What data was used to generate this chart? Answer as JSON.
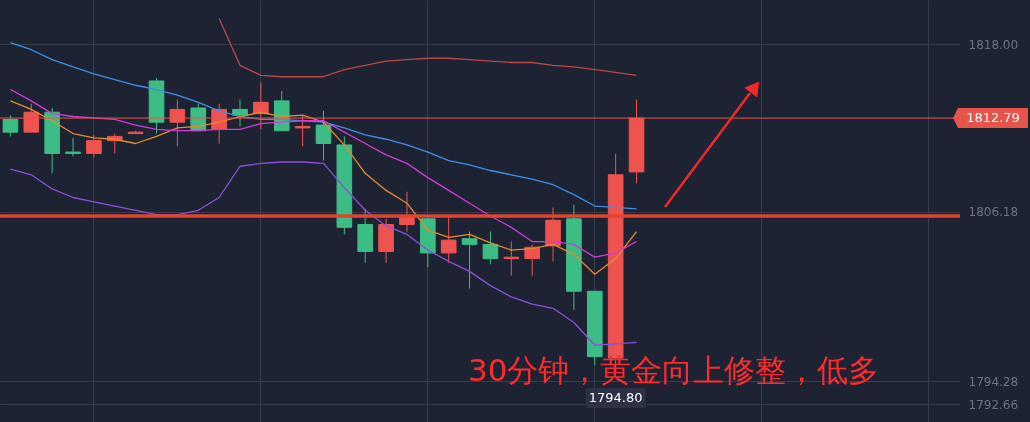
{
  "chart_data": {
    "type": "candlestick",
    "categories": [
      null,
      null,
      null,
      null,
      null,
      null,
      null,
      null,
      null,
      null,
      null,
      null,
      null,
      null,
      null,
      null,
      null,
      null,
      null,
      null,
      null,
      null,
      null,
      null,
      null,
      null,
      null,
      null,
      null,
      null,
      null,
      null,
      null,
      null,
      null,
      null,
      null,
      null,
      null,
      null,
      null,
      null,
      null,
      null,
      null,
      null
    ],
    "ohlc": [
      [
        1812.7,
        1813.0,
        1811.5,
        1811.8
      ],
      [
        1811.8,
        1813.8,
        1811.8,
        1813.2
      ],
      [
        1813.2,
        1813.5,
        1808.9,
        1810.3
      ],
      [
        1810.4,
        1811.4,
        1810.1,
        1810.3
      ],
      [
        1810.3,
        1811.6,
        1810.0,
        1811.2
      ],
      [
        1811.2,
        1811.7,
        1810.3,
        1811.5
      ],
      [
        1811.7,
        1811.9,
        1811.7,
        1811.8
      ],
      [
        1815.4,
        1815.6,
        1811.7,
        1812.5
      ],
      [
        1812.5,
        1814.1,
        1810.8,
        1813.4
      ],
      [
        1813.5,
        1813.8,
        1811.9,
        1811.9
      ],
      [
        1812.0,
        1813.8,
        1811.0,
        1813.4
      ],
      [
        1813.4,
        1814.1,
        1812.2,
        1813.0
      ],
      [
        1813.1,
        1815.3,
        1812.0,
        1813.9
      ],
      [
        1814.0,
        1814.7,
        1811.9,
        1811.9
      ],
      [
        1812.1,
        1813.0,
        1810.8,
        1812.2
      ],
      [
        1812.3,
        1813.3,
        1809.8,
        1811.0
      ],
      [
        1810.9,
        1811.5,
        1804.6,
        1805.1
      ],
      [
        1805.3,
        1806.4,
        1802.6,
        1803.4
      ],
      [
        1803.4,
        1805.7,
        1802.6,
        1805.3
      ],
      [
        1805.3,
        1807.6,
        1804.8,
        1805.8
      ],
      [
        1805.7,
        1805.8,
        1802.3,
        1803.3
      ],
      [
        1803.3,
        1805.8,
        1802.6,
        1804.2
      ],
      [
        1804.3,
        1804.8,
        1800.8,
        1803.9
      ],
      [
        1803.9,
        1804.8,
        1802.5,
        1802.9
      ],
      [
        1802.9,
        1804.1,
        1801.7,
        1803.0
      ],
      [
        1802.9,
        1803.9,
        1801.7,
        1803.7
      ],
      [
        1803.8,
        1806.5,
        1802.7,
        1805.6
      ],
      [
        1805.7,
        1806.7,
        1799.3,
        1800.6
      ],
      [
        1800.6,
        1800.6,
        1795.4,
        1796.0
      ],
      [
        1795.9,
        1810.3,
        1794.8,
        1808.8
      ],
      [
        1809.0,
        1814.1,
        1808.2,
        1812.79
      ],
      null,
      null,
      null,
      null,
      null,
      null,
      null,
      null,
      null,
      null,
      null,
      null,
      null,
      null,
      null
    ],
    "colors": [
      "#3dbd86",
      "#ef5350",
      "#3dbd86",
      "#3dbd86",
      "#ef5350",
      "#ef5350",
      "#ef5350",
      "#3dbd86",
      "#ef5350",
      "#3dbd86",
      "#ef5350",
      "#3dbd86",
      "#ef5350",
      "#3dbd86",
      "#ef5350",
      "#3dbd86",
      "#3dbd86",
      "#3dbd86",
      "#ef5350",
      "#ef5350",
      "#3dbd86",
      "#ef5350",
      "#3dbd86",
      "#3dbd86",
      "#ef5350",
      "#ef5350",
      "#ef5350",
      "#3dbd86",
      "#3dbd86",
      "#ef5350",
      "#ef5350",
      null,
      null,
      null,
      null,
      null,
      null,
      null,
      null,
      null,
      null,
      null,
      null,
      null,
      null,
      null
    ],
    "series": [
      {
        "type": "line",
        "color": "#3f8ee8",
        "values": [
          1818.1,
          1817.6,
          1816.9,
          1816.4,
          1815.9,
          1815.5,
          1815.1,
          1814.8,
          1814.4,
          1813.9,
          1813.3,
          1812.9,
          1812.7,
          1812.7,
          1812.6,
          1812.5,
          1812.1,
          1811.6,
          1811.3,
          1810.9,
          1810.4,
          1809.8,
          1809.5,
          1809.1,
          1808.8,
          1808.5,
          1808.1,
          1807.4,
          1806.6,
          1806.5,
          1806.4,
          null,
          null,
          null,
          null,
          null,
          null,
          null,
          null,
          null,
          null,
          null,
          null,
          null,
          null,
          null
        ]
      },
      {
        "type": "line",
        "color": "#e58a2a",
        "values": [
          1814.0,
          1813.4,
          1812.6,
          1811.7,
          1811.4,
          1811.3,
          1811.0,
          1811.5,
          1812.1,
          1812.2,
          1812.5,
          1812.9,
          1813.2,
          1812.9,
          1813.0,
          1812.5,
          1810.9,
          1808.9,
          1807.7,
          1806.8,
          1804.9,
          1804.4,
          1804.6,
          1804.0,
          1803.5,
          1803.6,
          1803.9,
          1803.2,
          1801.8,
          1802.9,
          1804.8,
          null,
          null,
          null,
          null,
          null,
          null,
          null,
          null,
          null,
          null,
          null,
          null,
          null,
          null,
          null
        ]
      },
      {
        "type": "line",
        "color": "#d13bd6",
        "values": [
          1814.8,
          1814.0,
          1813.1,
          1812.9,
          1812.8,
          1812.7,
          1812.3,
          1812.0,
          1811.9,
          1811.9,
          1812.0,
          1812.0,
          1812.4,
          1812.5,
          1812.6,
          1812.6,
          1811.8,
          1811.0,
          1810.2,
          1809.6,
          1808.6,
          1807.7,
          1806.8,
          1805.9,
          1805.1,
          1804.1,
          1804.1,
          1803.9,
          1803.0,
          1803.3,
          1804.1,
          null,
          null,
          null,
          null,
          null,
          null,
          null,
          null,
          null,
          null,
          null,
          null,
          null,
          null,
          null
        ]
      },
      {
        "type": "line",
        "color": "#8c4fd8",
        "values": [
          1809.2,
          1808.8,
          1807.8,
          1807.2,
          1806.9,
          1806.6,
          1806.3,
          1806.0,
          1806.0,
          1806.3,
          1807.2,
          1809.4,
          1809.6,
          1809.7,
          1809.7,
          1809.6,
          1807.9,
          1806.3,
          1805.2,
          1804.6,
          1803.5,
          1802.7,
          1802.0,
          1801.0,
          1800.2,
          1799.7,
          1799.4,
          1798.4,
          1796.8,
          1796.9,
          1797.0,
          null,
          null,
          null,
          null,
          null,
          null,
          null,
          null,
          null,
          null,
          null,
          null,
          null,
          null,
          null
        ]
      },
      {
        "type": "line",
        "color": "#b8474a",
        "values": [
          null,
          null,
          null,
          null,
          null,
          null,
          null,
          null,
          null,
          null,
          1819.8,
          1816.5,
          1815.8,
          1815.7,
          1815.7,
          1815.7,
          1816.2,
          1816.5,
          1816.8,
          1816.9,
          1817.0,
          1817.0,
          1816.9,
          1816.8,
          1816.7,
          1816.7,
          1816.5,
          1816.4,
          1816.2,
          1816.0,
          1815.8,
          null,
          null,
          null,
          null,
          null,
          null,
          null,
          null,
          null,
          null,
          null,
          null,
          null,
          null,
          null
        ]
      }
    ],
    "ylim": [
      1791.4,
      1821.1
    ],
    "yticks": [
      {
        "value": 1818,
        "label": "1818.00"
      },
      1806.18,
      1794.28,
      1792.66
    ],
    "ref_lines": [
      {
        "axis": "y",
        "value": 1812.79,
        "label": "1812.79",
        "color": "#e8534a"
      },
      {
        "axis": "y",
        "value": 1805.9,
        "color": "#e2452f"
      }
    ],
    "annotations": [
      "30分钟，黄金向上修整，低多",
      {
        "text": "1794.80",
        "y": 1794.8
      }
    ],
    "grid": true,
    "tick_labels": "y"
  }
}
